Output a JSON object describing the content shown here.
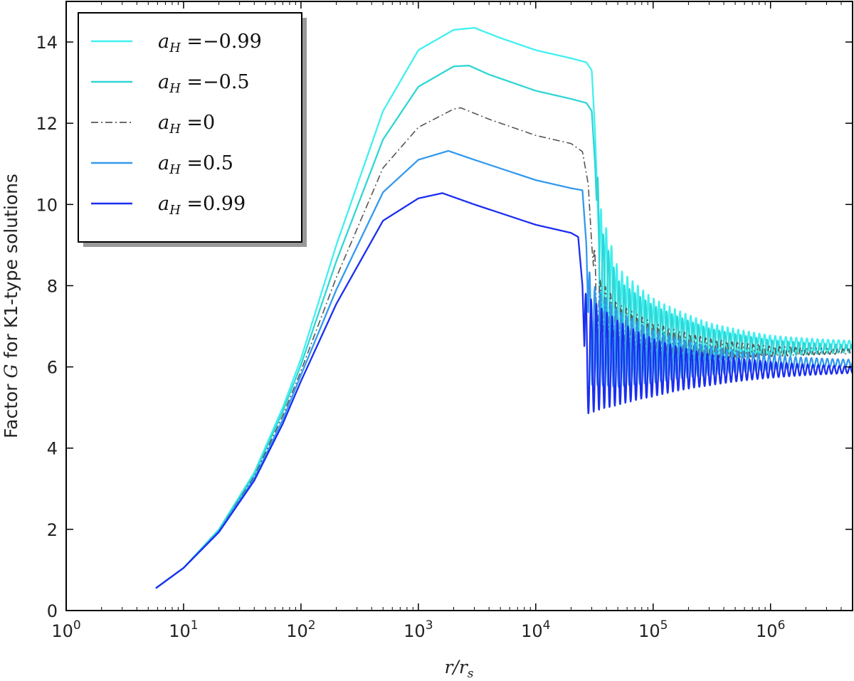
{
  "chart_data": {
    "type": "line",
    "xlabel": "r/r_s",
    "xlabel_parts": {
      "base": "r/r",
      "sub": "s"
    },
    "ylabel": "Factor G for K1-type solutions",
    "ylabel_parts": {
      "before": "Factor ",
      "symbol": "G",
      "after": " for K1-type solutions"
    },
    "xscale": "log",
    "xlim": [
      1,
      5000000
    ],
    "ylim": [
      0,
      15
    ],
    "x_ticks": [
      {
        "value": 1,
        "base": "10",
        "exp": "0"
      },
      {
        "value": 10,
        "base": "10",
        "exp": "1"
      },
      {
        "value": 100,
        "base": "10",
        "exp": "2"
      },
      {
        "value": 1000,
        "base": "10",
        "exp": "3"
      },
      {
        "value": 10000,
        "base": "10",
        "exp": "4"
      },
      {
        "value": 100000,
        "base": "10",
        "exp": "5"
      },
      {
        "value": 1000000,
        "base": "10",
        "exp": "6"
      }
    ],
    "y_ticks": [
      {
        "value": 0,
        "label": "0"
      },
      {
        "value": 2,
        "label": "2"
      },
      {
        "value": 4,
        "label": "4"
      },
      {
        "value": 6,
        "label": "6"
      },
      {
        "value": 8,
        "label": "8"
      },
      {
        "value": 10,
        "label": "10"
      },
      {
        "value": 12,
        "label": "12"
      },
      {
        "value": 14,
        "label": "14"
      }
    ],
    "grid": false,
    "legend_position": "top-left",
    "series": [
      {
        "name": "a_H = -0.99",
        "label": {
          "sym": "a",
          "sub": "H",
          "val": " =−0.99"
        },
        "color": "#40f0f0",
        "style": "solid",
        "x": [
          5.8,
          10,
          20,
          40,
          70,
          100,
          200,
          500,
          1000,
          2000,
          3000,
          5000,
          10000,
          20000,
          27000,
          30000,
          32000,
          35000,
          50000,
          100000,
          300000,
          1000000,
          5000000
        ],
        "y": [
          0.55,
          1.05,
          2.0,
          3.4,
          5.0,
          6.2,
          9.0,
          12.3,
          13.8,
          14.3,
          14.35,
          14.1,
          13.8,
          13.6,
          13.5,
          13.3,
          11.8,
          8.6,
          7.3,
          6.9,
          6.65,
          6.55,
          6.55
        ],
        "oscillation": {
          "start": 35000,
          "end": 1000000,
          "amplitude": 1.4,
          "period_decades": 0.045
        }
      },
      {
        "name": "a_H = -0.5",
        "label": {
          "sym": "a",
          "sub": "H",
          "val": " =−0.5"
        },
        "color": "#30d5d5",
        "style": "solid",
        "x": [
          5.8,
          10,
          20,
          40,
          70,
          100,
          200,
          500,
          1000,
          2000,
          2700,
          4000,
          10000,
          20000,
          27000,
          30000,
          32000,
          35000,
          50000,
          100000,
          300000,
          1000000,
          5000000
        ],
        "y": [
          0.55,
          1.05,
          1.98,
          3.35,
          4.9,
          6.05,
          8.6,
          11.6,
          12.9,
          13.4,
          13.42,
          13.2,
          12.8,
          12.6,
          12.5,
          12.3,
          11.0,
          8.3,
          7.1,
          6.8,
          6.55,
          6.45,
          6.45
        ],
        "oscillation": {
          "start": 33000,
          "end": 1000000,
          "amplitude": 1.3,
          "period_decades": 0.045
        }
      },
      {
        "name": "a_H = 0",
        "label": {
          "sym": "a",
          "sub": "H",
          "val": " =0"
        },
        "color": "#555555",
        "style": "dashdot",
        "x": [
          5.8,
          10,
          20,
          40,
          70,
          100,
          200,
          500,
          1000,
          2000,
          2300,
          4000,
          10000,
          20000,
          25000,
          28000,
          30000,
          33000,
          50000,
          100000,
          300000,
          1000000,
          5000000
        ],
        "y": [
          0.55,
          1.05,
          1.96,
          3.3,
          4.8,
          5.9,
          8.2,
          10.9,
          11.9,
          12.35,
          12.38,
          12.1,
          11.7,
          11.5,
          11.3,
          10.5,
          9.0,
          7.5,
          6.95,
          6.65,
          6.45,
          6.38,
          6.38
        ],
        "oscillation": {
          "start": 31000,
          "end": 1000000,
          "amplitude": 0.8,
          "period_decades": 0.045
        }
      },
      {
        "name": "a_H = 0.5",
        "label": {
          "sym": "a",
          "sub": "H",
          "val": " =0.5"
        },
        "color": "#3399ee",
        "style": "solid",
        "x": [
          5.8,
          10,
          20,
          40,
          70,
          100,
          200,
          500,
          1000,
          1800,
          3000,
          10000,
          20000,
          25000,
          27000,
          28000,
          30000,
          50000,
          100000,
          300000,
          1000000,
          5000000
        ],
        "y": [
          0.55,
          1.05,
          1.95,
          3.25,
          4.7,
          5.8,
          7.9,
          10.3,
          11.1,
          11.32,
          11.1,
          10.6,
          10.4,
          10.35,
          9.0,
          7.2,
          6.8,
          6.45,
          6.25,
          6.15,
          6.1,
          6.1
        ],
        "oscillation": {
          "start": 28000,
          "end": 800000,
          "amplitude": 1.3,
          "period_decades": 0.045
        }
      },
      {
        "name": "a_H = 0.99",
        "label": {
          "sym": "a",
          "sub": "H",
          "val": " =0.99"
        },
        "color": "#1a2ef0",
        "style": "solid",
        "x": [
          5.8,
          10,
          20,
          40,
          70,
          100,
          200,
          500,
          1000,
          1600,
          3000,
          10000,
          20000,
          23000,
          25000,
          26000,
          27000,
          50000,
          100000,
          300000,
          1000000,
          5000000
        ],
        "y": [
          0.55,
          1.05,
          1.93,
          3.2,
          4.6,
          5.65,
          7.55,
          9.6,
          10.15,
          10.28,
          10.0,
          9.5,
          9.3,
          9.2,
          8.0,
          6.4,
          6.3,
          6.1,
          5.98,
          5.93,
          5.93,
          5.93
        ],
        "oscillation": {
          "start": 26000,
          "end": 700000,
          "amplitude": 1.5,
          "period_decades": 0.045
        }
      }
    ]
  }
}
